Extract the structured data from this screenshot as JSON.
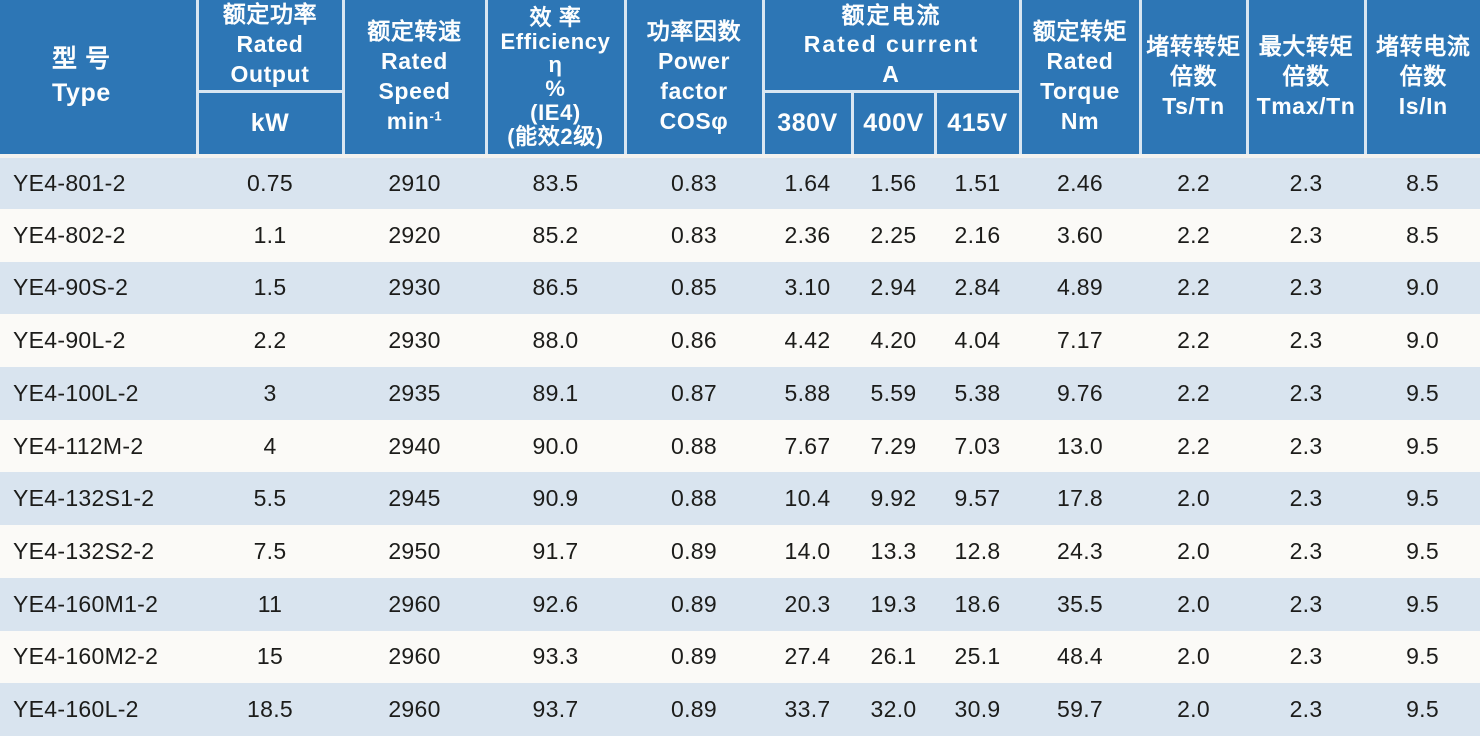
{
  "table": {
    "title_semantic": "YE4 series motor specification table (2-pole)",
    "colors": {
      "header_bg": "#2d76b5",
      "header_text": "#fdfefe",
      "row_alt": "#d9e4ef",
      "row_base": "#fbfaf7",
      "divider": "#d8e6f2",
      "body_text": "#1c1c1a"
    },
    "headers": {
      "type": {
        "zh": "型 号",
        "en": "Type"
      },
      "output": {
        "group": "额定功率\nRated\nOutput",
        "unit": "kW"
      },
      "speed": {
        "text": "额定转速\nRated\nSpeed",
        "unit_base": "min",
        "unit_sup": "-1"
      },
      "efficiency": {
        "text": "效 率\nEfficiency\nη\n%\n(IE4)\n(能效2级)"
      },
      "power_factor": {
        "text": "功率因数\nPower\nfactor\nCOSφ"
      },
      "current": {
        "group": "额定电流\nRated current\nA",
        "sub": [
          "380V",
          "400V",
          "415V"
        ]
      },
      "torque": {
        "text": "额定转矩\nRated\nTorque\nNm"
      },
      "ts_tn": {
        "text": "堵转转矩\n倍数\nTs/Tn"
      },
      "tmax_tn": {
        "text": "最大转矩\n倍数\nTmax/Tn"
      },
      "is_in": {
        "text": "堵转电流\n倍数\nIs/In"
      }
    },
    "col_ids": [
      "type",
      "output-kw",
      "speed",
      "efficiency",
      "power-factor",
      "current-380v",
      "current-400v",
      "current-415v",
      "torque-nm",
      "ts-tn",
      "tmax-tn",
      "is-in"
    ],
    "rows": [
      [
        "YE4-801-2",
        "0.75",
        "2910",
        "83.5",
        "0.83",
        "1.64",
        "1.56",
        "1.51",
        "2.46",
        "2.2",
        "2.3",
        "8.5"
      ],
      [
        "YE4-802-2",
        "1.1",
        "2920",
        "85.2",
        "0.83",
        "2.36",
        "2.25",
        "2.16",
        "3.60",
        "2.2",
        "2.3",
        "8.5"
      ],
      [
        "YE4-90S-2",
        "1.5",
        "2930",
        "86.5",
        "0.85",
        "3.10",
        "2.94",
        "2.84",
        "4.89",
        "2.2",
        "2.3",
        "9.0"
      ],
      [
        "YE4-90L-2",
        "2.2",
        "2930",
        "88.0",
        "0.86",
        "4.42",
        "4.20",
        "4.04",
        "7.17",
        "2.2",
        "2.3",
        "9.0"
      ],
      [
        "YE4-100L-2",
        "3",
        "2935",
        "89.1",
        "0.87",
        "5.88",
        "5.59",
        "5.38",
        "9.76",
        "2.2",
        "2.3",
        "9.5"
      ],
      [
        "YE4-112M-2",
        "4",
        "2940",
        "90.0",
        "0.88",
        "7.67",
        "7.29",
        "7.03",
        "13.0",
        "2.2",
        "2.3",
        "9.5"
      ],
      [
        "YE4-132S1-2",
        "5.5",
        "2945",
        "90.9",
        "0.88",
        "10.4",
        "9.92",
        "9.57",
        "17.8",
        "2.0",
        "2.3",
        "9.5"
      ],
      [
        "YE4-132S2-2",
        "7.5",
        "2950",
        "91.7",
        "0.89",
        "14.0",
        "13.3",
        "12.8",
        "24.3",
        "2.0",
        "2.3",
        "9.5"
      ],
      [
        "YE4-160M1-2",
        "11",
        "2960",
        "92.6",
        "0.89",
        "20.3",
        "19.3",
        "18.6",
        "35.5",
        "2.0",
        "2.3",
        "9.5"
      ],
      [
        "YE4-160M2-2",
        "15",
        "2960",
        "93.3",
        "0.89",
        "27.4",
        "26.1",
        "25.1",
        "48.4",
        "2.0",
        "2.3",
        "9.5"
      ],
      [
        "YE4-160L-2",
        "18.5",
        "2960",
        "93.7",
        "0.89",
        "33.7",
        "32.0",
        "30.9",
        "59.7",
        "2.0",
        "2.3",
        "9.5"
      ]
    ]
  }
}
